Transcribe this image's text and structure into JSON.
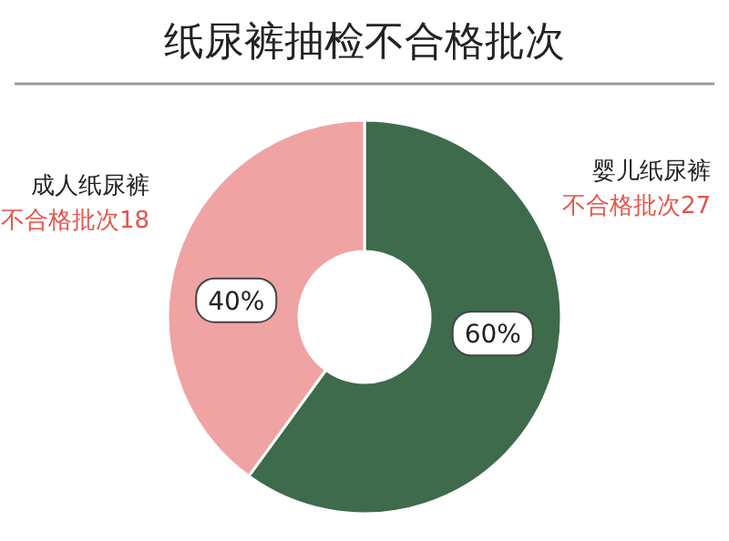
{
  "chart_data": {
    "type": "donut",
    "title": "纸尿裤抽检不合格批次",
    "categories": [
      "婴儿纸尿裤",
      "成人纸尿裤"
    ],
    "values": [
      60,
      40
    ],
    "colors": [
      "#3d6b4c",
      "#f0a3a3"
    ],
    "value_labels": [
      "60%",
      "40%"
    ],
    "annotations": [
      "不合格批次27",
      "不合格批次18"
    ]
  }
}
